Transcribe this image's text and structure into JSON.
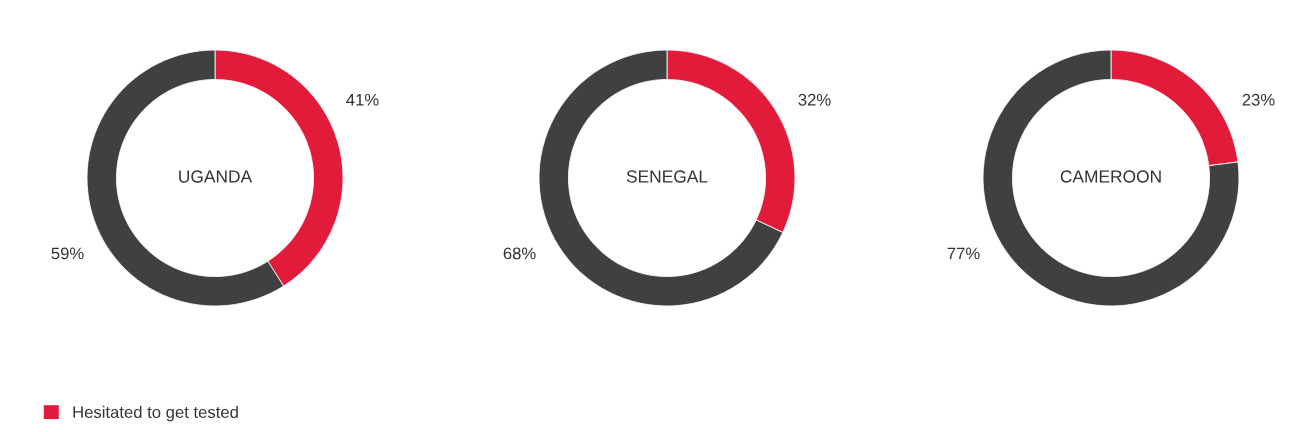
{
  "chart_data": [
    {
      "type": "donut",
      "title": "UGANDA",
      "categories": [
        "Hesitated to get tested",
        null
      ],
      "values": [
        41,
        59
      ],
      "colors": [
        "#e31b3a",
        "#404042"
      ],
      "value_labels": [
        "41%",
        "59%"
      ],
      "legend": "bottom left"
    },
    {
      "type": "donut",
      "title": "SENEGAL",
      "categories": [
        null,
        null
      ],
      "values": [
        32,
        68
      ],
      "colors": [
        "#e31b3a",
        "#404042"
      ],
      "value_labels": [
        "32%",
        "68%"
      ]
    },
    {
      "type": "donut",
      "title": "CAMEROON",
      "categories": [
        null,
        null
      ],
      "values": [
        23,
        77
      ],
      "colors": [
        "#e31b3a",
        "#404042"
      ],
      "value_labels": [
        "23%",
        "77%"
      ]
    }
  ]
}
